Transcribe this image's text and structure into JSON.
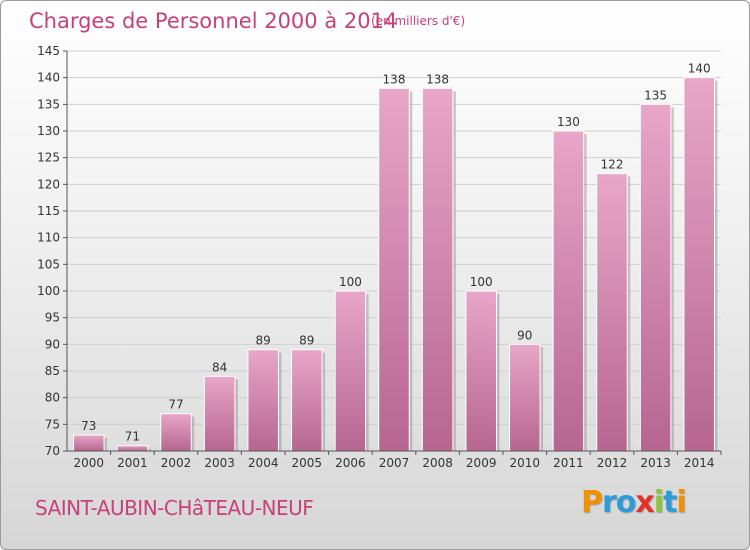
{
  "chart_data": {
    "type": "bar",
    "title": "Charges de Personnel 2000 à 2014",
    "subtitle": "(en milliers d'€)",
    "categories": [
      "2000",
      "2001",
      "2002",
      "2003",
      "2004",
      "2005",
      "2006",
      "2007",
      "2008",
      "2009",
      "2010",
      "2011",
      "2012",
      "2013",
      "2014"
    ],
    "values": [
      73,
      71,
      77,
      84,
      89,
      89,
      100,
      138,
      138,
      100,
      90,
      130,
      122,
      135,
      140
    ],
    "ylim": [
      70,
      145
    ],
    "yticks": [
      70,
      75,
      80,
      85,
      90,
      95,
      100,
      105,
      110,
      115,
      120,
      125,
      130,
      135,
      140,
      145
    ],
    "grid": true,
    "bar_color": "#d97fae",
    "bar_color_light": "#e8a6c8",
    "bar_color_dark": "#b66690",
    "accent_color": "#c8407a"
  },
  "footer": {
    "location": "SAINT-AUBIN-CHâTEAU-NEUF"
  },
  "brand": {
    "letters": [
      {
        "char": "P",
        "color": "#f29100"
      },
      {
        "char": "r",
        "color": "#2c9bd6"
      },
      {
        "char": "o",
        "color": "#2c9bd6"
      },
      {
        "char": "x",
        "color": "#e5302a"
      },
      {
        "char": "i",
        "color": "#8cc63f"
      },
      {
        "char": "t",
        "color": "#2c9bd6"
      },
      {
        "char": "i",
        "color": "#f29100"
      }
    ]
  }
}
